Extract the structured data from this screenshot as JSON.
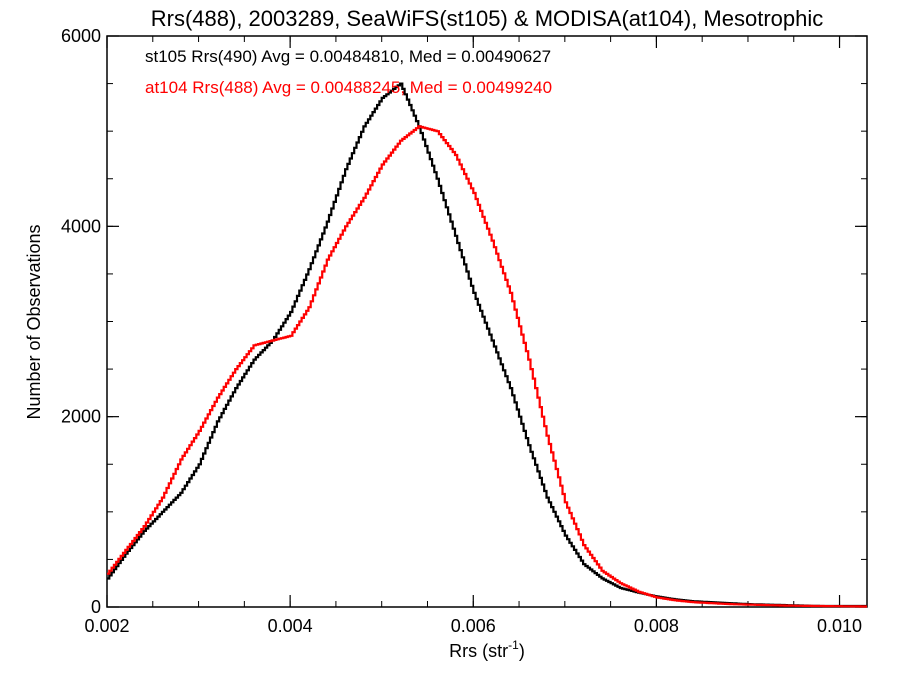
{
  "chart_data": {
    "type": "line",
    "title": "Rrs(488), 2003289, SeaWiFS(st105) & MODISA(at104), Mesotrophic",
    "xlabel": "Rrs (str",
    "xlabel_sup": "-1",
    "xlabel_close": ")",
    "ylabel": "Number of Observations",
    "xlim": [
      0.002,
      0.0103
    ],
    "ylim": [
      0,
      6000
    ],
    "x_ticks": [
      "0.002",
      "0.004",
      "0.006",
      "0.008",
      "0.010"
    ],
    "y_ticks": [
      "0",
      "2000",
      "4000",
      "6000"
    ],
    "x_tick_values": [
      0.002,
      0.004,
      0.006,
      0.008,
      0.01
    ],
    "y_tick_values": [
      0,
      2000,
      4000,
      6000
    ],
    "grid": false,
    "legend_placement": "top-left",
    "series": [
      {
        "name": "st105 Rrs(490) Avg = 0.00484810, Med = 0.00490627",
        "color": "#000000",
        "x": [
          0.002,
          0.0022,
          0.0024,
          0.0026,
          0.0028,
          0.003,
          0.0032,
          0.0034,
          0.0036,
          0.0038,
          0.004,
          0.0042,
          0.0044,
          0.0046,
          0.0048,
          0.005,
          0.0052,
          0.0054,
          0.0056,
          0.0058,
          0.006,
          0.0062,
          0.0064,
          0.0066,
          0.0068,
          0.007,
          0.0072,
          0.0074,
          0.0076,
          0.0078,
          0.008,
          0.0082,
          0.0084,
          0.0086,
          0.0088,
          0.009,
          0.0092,
          0.0094,
          0.0096,
          0.0098,
          0.01,
          0.0103
        ],
        "y": [
          300,
          560,
          800,
          1000,
          1200,
          1500,
          1950,
          2300,
          2600,
          2800,
          3100,
          3550,
          4050,
          4600,
          5050,
          5350,
          5500,
          5050,
          4500,
          3900,
          3300,
          2800,
          2300,
          1700,
          1150,
          750,
          450,
          300,
          200,
          150,
          110,
          80,
          60,
          50,
          40,
          30,
          25,
          20,
          15,
          10,
          10,
          10
        ]
      },
      {
        "name": "at104 Rrs(488) Avg = 0.00488245, Med = 0.00499240",
        "color": "#ff0000",
        "x": [
          0.002,
          0.0022,
          0.0024,
          0.0026,
          0.0028,
          0.003,
          0.0032,
          0.0034,
          0.0036,
          0.0038,
          0.004,
          0.0042,
          0.0044,
          0.0046,
          0.0048,
          0.005,
          0.0052,
          0.0054,
          0.0056,
          0.0058,
          0.006,
          0.0062,
          0.0064,
          0.0066,
          0.0068,
          0.007,
          0.0072,
          0.0074,
          0.0076,
          0.0078,
          0.008,
          0.0082,
          0.0084,
          0.0086,
          0.0088,
          0.009,
          0.0092,
          0.0094,
          0.0096,
          0.0098,
          0.01,
          0.0103
        ],
        "y": [
          350,
          600,
          850,
          1150,
          1550,
          1850,
          2200,
          2500,
          2750,
          2800,
          2850,
          3150,
          3650,
          4000,
          4300,
          4650,
          4900,
          5050,
          5000,
          4750,
          4350,
          3850,
          3300,
          2600,
          1800,
          1100,
          650,
          380,
          250,
          160,
          100,
          70,
          50,
          40,
          30,
          25,
          20,
          15,
          12,
          10,
          8,
          5
        ]
      }
    ]
  }
}
